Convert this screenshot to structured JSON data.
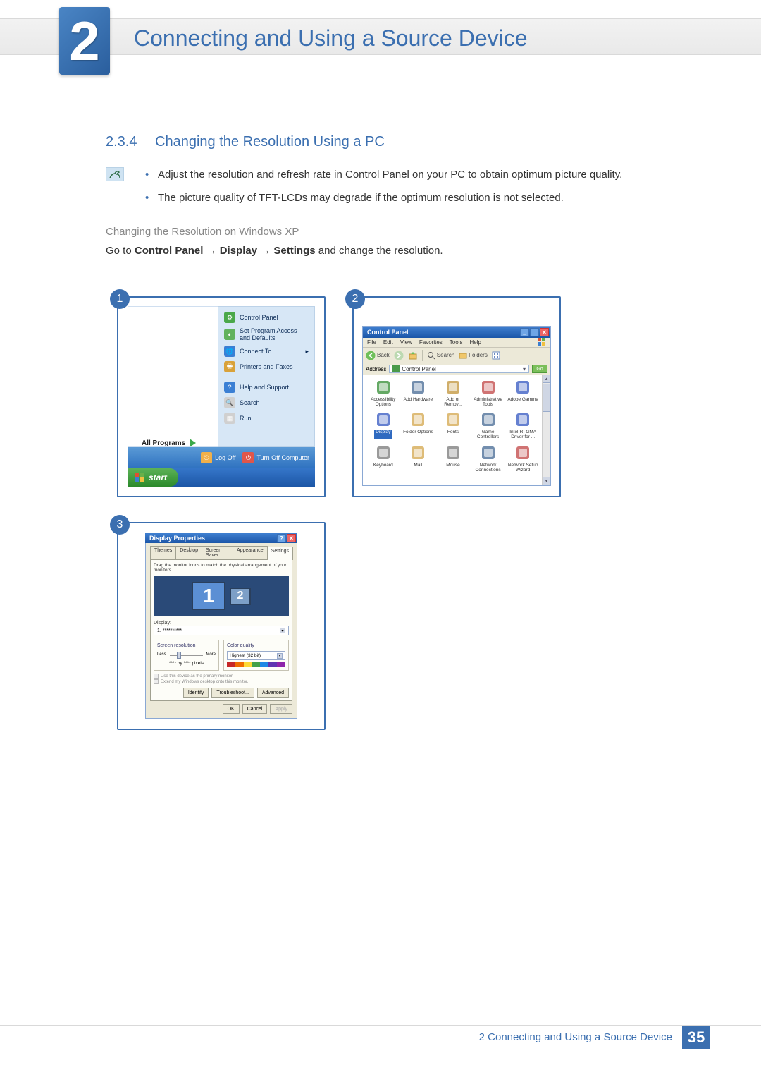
{
  "chapter": {
    "number": "2",
    "title": "Connecting and Using a Source Device"
  },
  "section": {
    "number": "2.3.4",
    "title": "Changing the Resolution Using a PC"
  },
  "notes": [
    "Adjust the resolution and refresh rate in Control Panel on your PC to obtain optimum picture quality.",
    "The picture quality of TFT-LCDs may degrade if the optimum resolution is not selected."
  ],
  "os_subtitle": "Changing the Resolution on Windows XP",
  "instruction_parts": {
    "pre": "Go to ",
    "b1": "Control Panel",
    "arrow": " → ",
    "b2": "Display",
    "b3": "Settings",
    "post": " and change the resolution."
  },
  "panel1": {
    "badge": "1",
    "right_items": [
      {
        "label": "Control Panel",
        "icon_bg": "#4aa84a",
        "glyph": "⚙"
      },
      {
        "label": "Set Program Access and Defaults",
        "icon_bg": "#61b25d",
        "glyph": "◐"
      },
      {
        "label": "Connect To",
        "icon_bg": "#3a7fd4",
        "glyph": "🌐",
        "arrow": "▸"
      },
      {
        "label": "Printers and Faxes",
        "icon_bg": "#d9a23a",
        "glyph": "🖶"
      },
      {
        "sep": true
      },
      {
        "label": "Help and Support",
        "icon_bg": "#3a7fd4",
        "glyph": "?"
      },
      {
        "label": "Search",
        "icon_bg": "#d0d0d0",
        "glyph": "🔍"
      },
      {
        "label": "Run...",
        "icon_bg": "#d0d0d0",
        "glyph": "▦"
      }
    ],
    "all_programs": "All Programs",
    "logoff": "Log Off",
    "turnoff": "Turn Off Computer",
    "logoff_bg": "#f0b04a",
    "turnoff_bg": "#e0564a",
    "start": "start"
  },
  "panel2": {
    "badge": "2",
    "title": "Control Panel",
    "menu": [
      "File",
      "Edit",
      "View",
      "Favorites",
      "Tools",
      "Help"
    ],
    "toolbar": {
      "back": "Back",
      "search": "Search",
      "folders": "Folders"
    },
    "address_label": "Address",
    "address_value": "Control Panel",
    "go": "Go",
    "items": [
      {
        "label": "Accessibility Options",
        "color": "#4a9a4a"
      },
      {
        "label": "Add Hardware",
        "color": "#5a7aa0"
      },
      {
        "label": "Add or Remov...",
        "color": "#c8a050"
      },
      {
        "label": "Administrative Tools",
        "color": "#c85a5a"
      },
      {
        "label": "Adobe Gamma",
        "color": "#4a6ac8"
      },
      {
        "label": "Display",
        "color": "#4a6ac8",
        "selected": true
      },
      {
        "label": "Folder Options",
        "color": "#d8b060"
      },
      {
        "label": "Fonts",
        "color": "#d8b060"
      },
      {
        "label": "Game Controllers",
        "color": "#5a7aa0"
      },
      {
        "label": "Intel(R) GMA Driver for ...",
        "color": "#4a6ac8"
      },
      {
        "label": "Keyboard",
        "color": "#888"
      },
      {
        "label": "Mail",
        "color": "#d8b060"
      },
      {
        "label": "Mouse",
        "color": "#888"
      },
      {
        "label": "Network Connections",
        "color": "#5a7aa0"
      },
      {
        "label": "Network Setup Wizard",
        "color": "#c85a5a"
      }
    ]
  },
  "panel3": {
    "badge": "3",
    "title": "Display Properties",
    "tabs": [
      "Themes",
      "Desktop",
      "Screen Saver",
      "Appearance",
      "Settings"
    ],
    "active_tab": 4,
    "hint": "Drag the monitor icons to match the physical arrangement of your monitors.",
    "mon1": "1",
    "mon2": "2",
    "display_label": "Display:",
    "display_value": "1. **********",
    "group_res": "Screen resolution",
    "less": "Less",
    "more": "More",
    "res_current": "**** by **** pixels",
    "group_cq": "Color quality",
    "cq_value": "Highest (32 bit)",
    "colorbar": [
      "#c62828",
      "#ef6c00",
      "#fdd835",
      "#43a047",
      "#1e88e5",
      "#5e35b1",
      "#8e24aa"
    ],
    "check1": "Use this device as the primary monitor.",
    "check2": "Extend my Windows desktop onto this monitor.",
    "midbtns": [
      "Identify",
      "Troubleshoot...",
      "Advanced"
    ],
    "footbtns": [
      "OK",
      "Cancel",
      "Apply"
    ]
  },
  "footer": {
    "title": "2 Connecting and Using a Source Device",
    "page": "35"
  }
}
